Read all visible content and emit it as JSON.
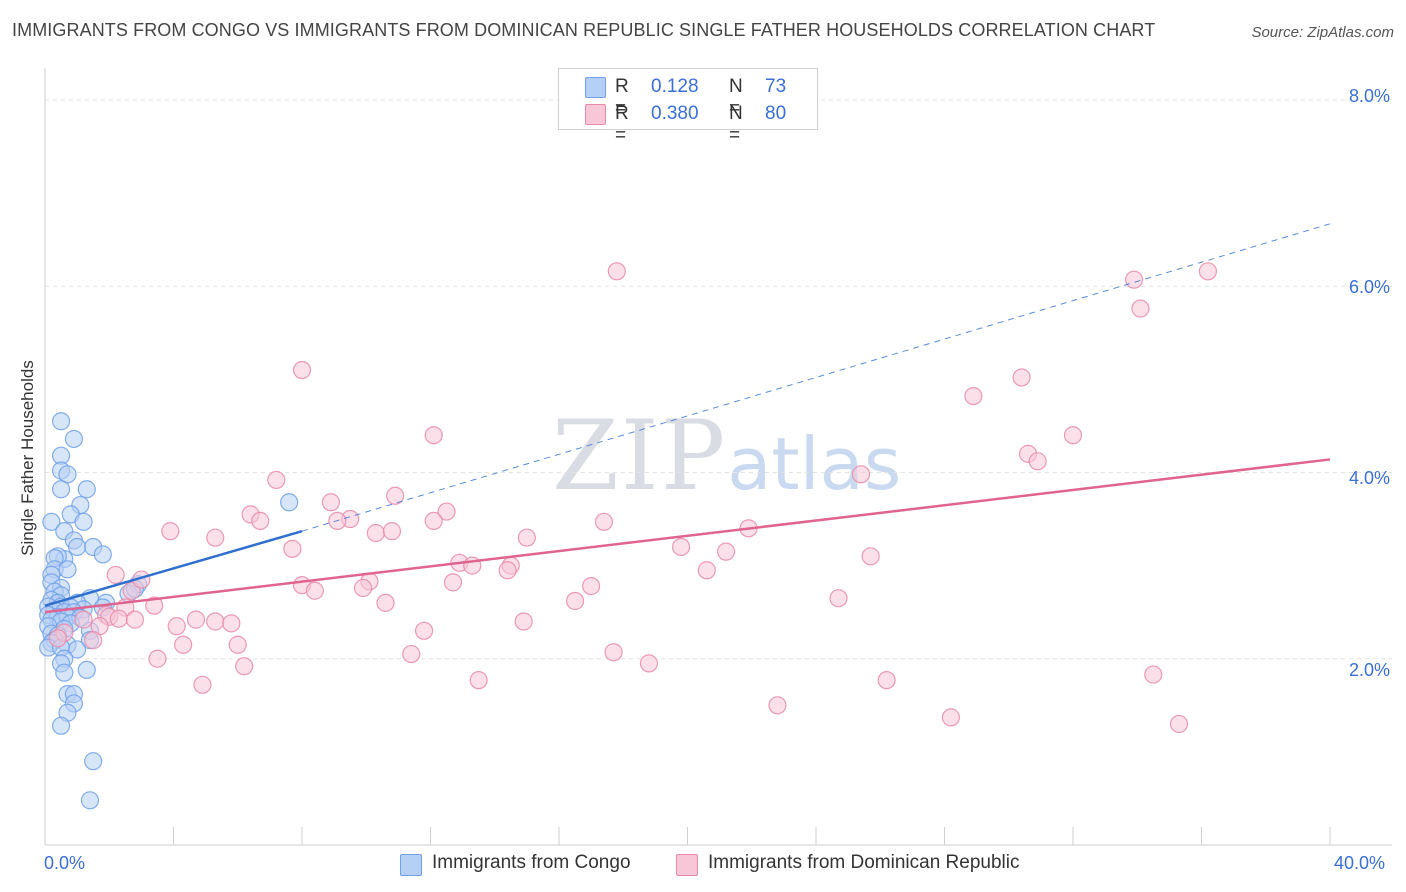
{
  "title": "IMMIGRANTS FROM CONGO VS IMMIGRANTS FROM DOMINICAN REPUBLIC SINGLE FATHER HOUSEHOLDS CORRELATION CHART",
  "source": "Source: ZipAtlas.com",
  "watermark": {
    "zip": "ZIP",
    "atlas": "atlas"
  },
  "colors": {
    "congo": "#6fa0e8",
    "congo_fill": "#b6cff4",
    "dom": "#e889a8",
    "dom_fill": "#f7c7d7",
    "congo_line": "#2f6fd0",
    "dom_line": "#e0648f",
    "tick_text": "#3a6fd8"
  },
  "legend_top": [
    {
      "r_label": "R =",
      "r_value": "0.128",
      "n_label": "N =",
      "n_value": "73"
    },
    {
      "r_label": "R =",
      "r_value": "0.380",
      "n_label": "N =",
      "n_value": "80"
    }
  ],
  "legend_bottom": [
    "Immigrants from Congo",
    "Immigrants from Dominican Republic"
  ],
  "chart_data": {
    "type": "scatter",
    "title": "IMMIGRANTS FROM CONGO VS IMMIGRANTS FROM DOMINICAN REPUBLIC SINGLE FATHER HOUSEHOLDS CORRELATION CHART",
    "xlabel": "",
    "ylabel": "Single Father Households",
    "xlim": [
      0,
      40
    ],
    "ylim": [
      0,
      8.3
    ],
    "x_tick_labels": [
      "0.0%",
      "40.0%"
    ],
    "y_ticks": [
      2,
      4,
      6,
      8
    ],
    "y_tick_labels": [
      "2.0%",
      "4.0%",
      "6.0%",
      "8.0%"
    ],
    "grid": true,
    "series": [
      {
        "name": "Immigrants from Congo",
        "r": 0.128,
        "n": 73,
        "trend": {
          "x0": 0.0,
          "y0": 2.57,
          "x1": 8.0,
          "y1": 3.37,
          "extend_to_x": 40.0,
          "extend_to_y": 6.67
        },
        "points": [
          [
            0.5,
            4.55
          ],
          [
            0.9,
            4.36
          ],
          [
            0.5,
            4.18
          ],
          [
            0.5,
            4.02
          ],
          [
            0.7,
            3.98
          ],
          [
            1.3,
            3.82
          ],
          [
            0.5,
            3.82
          ],
          [
            1.1,
            3.65
          ],
          [
            0.8,
            3.55
          ],
          [
            0.2,
            3.47
          ],
          [
            1.2,
            3.47
          ],
          [
            0.6,
            3.37
          ],
          [
            0.9,
            3.27
          ],
          [
            1.0,
            3.2
          ],
          [
            1.5,
            3.2
          ],
          [
            0.6,
            3.07
          ],
          [
            1.8,
            3.12
          ],
          [
            0.4,
            3.1
          ],
          [
            0.3,
            3.08
          ],
          [
            0.3,
            2.96
          ],
          [
            0.7,
            2.96
          ],
          [
            0.2,
            2.9
          ],
          [
            0.2,
            2.82
          ],
          [
            2.9,
            2.8
          ],
          [
            0.5,
            2.76
          ],
          [
            0.3,
            2.72
          ],
          [
            0.5,
            2.68
          ],
          [
            2.6,
            2.7
          ],
          [
            1.4,
            2.65
          ],
          [
            0.2,
            2.63
          ],
          [
            0.4,
            2.6
          ],
          [
            1.0,
            2.6
          ],
          [
            1.9,
            2.6
          ],
          [
            0.1,
            2.56
          ],
          [
            0.5,
            2.56
          ],
          [
            0.8,
            2.55
          ],
          [
            1.2,
            2.53
          ],
          [
            1.8,
            2.55
          ],
          [
            0.3,
            2.52
          ],
          [
            0.6,
            2.5
          ],
          [
            0.9,
            2.5
          ],
          [
            0.1,
            2.47
          ],
          [
            0.4,
            2.45
          ],
          [
            0.7,
            2.45
          ],
          [
            1.1,
            2.44
          ],
          [
            0.2,
            2.42
          ],
          [
            0.5,
            2.4
          ],
          [
            0.8,
            2.38
          ],
          [
            0.1,
            2.35
          ],
          [
            0.6,
            2.32
          ],
          [
            1.4,
            2.3
          ],
          [
            0.2,
            2.27
          ],
          [
            0.4,
            2.25
          ],
          [
            0.3,
            2.2
          ],
          [
            1.4,
            2.2
          ],
          [
            0.2,
            2.17
          ],
          [
            0.7,
            2.15
          ],
          [
            0.1,
            2.12
          ],
          [
            0.5,
            2.12
          ],
          [
            1.0,
            2.1
          ],
          [
            0.6,
            2.0
          ],
          [
            0.5,
            1.95
          ],
          [
            1.3,
            1.88
          ],
          [
            0.6,
            1.85
          ],
          [
            0.7,
            1.62
          ],
          [
            0.9,
            1.62
          ],
          [
            0.9,
            1.52
          ],
          [
            0.7,
            1.42
          ],
          [
            0.5,
            1.28
          ],
          [
            1.5,
            0.9
          ],
          [
            1.4,
            0.48
          ],
          [
            7.6,
            3.68
          ],
          [
            2.8,
            2.75
          ]
        ]
      },
      {
        "name": "Immigrants from Dominican Republic",
        "r": 0.38,
        "n": 80,
        "trend": {
          "x0": 0.0,
          "y0": 2.5,
          "x1": 40.0,
          "y1": 4.14
        },
        "points": [
          [
            17.8,
            6.16
          ],
          [
            36.2,
            6.16
          ],
          [
            33.9,
            6.07
          ],
          [
            34.1,
            5.76
          ],
          [
            8.0,
            5.1
          ],
          [
            28.9,
            4.82
          ],
          [
            30.4,
            5.02
          ],
          [
            12.1,
            4.4
          ],
          [
            30.6,
            4.2
          ],
          [
            30.9,
            4.12
          ],
          [
            32.0,
            4.4
          ],
          [
            25.4,
            3.98
          ],
          [
            7.2,
            3.92
          ],
          [
            10.9,
            3.75
          ],
          [
            8.9,
            3.68
          ],
          [
            12.5,
            3.58
          ],
          [
            6.4,
            3.55
          ],
          [
            6.7,
            3.48
          ],
          [
            9.5,
            3.5
          ],
          [
            9.1,
            3.48
          ],
          [
            12.1,
            3.48
          ],
          [
            17.4,
            3.47
          ],
          [
            21.9,
            3.4
          ],
          [
            3.9,
            3.37
          ],
          [
            10.3,
            3.35
          ],
          [
            10.8,
            3.37
          ],
          [
            15.0,
            3.3
          ],
          [
            5.3,
            3.3
          ],
          [
            19.8,
            3.2
          ],
          [
            7.7,
            3.18
          ],
          [
            21.2,
            3.15
          ],
          [
            25.7,
            3.1
          ],
          [
            12.9,
            3.03
          ],
          [
            13.3,
            3.0
          ],
          [
            14.5,
            3.0
          ],
          [
            14.4,
            2.95
          ],
          [
            20.6,
            2.95
          ],
          [
            2.2,
            2.9
          ],
          [
            10.1,
            2.83
          ],
          [
            12.7,
            2.82
          ],
          [
            8.0,
            2.79
          ],
          [
            17.0,
            2.78
          ],
          [
            9.9,
            2.76
          ],
          [
            8.4,
            2.73
          ],
          [
            2.7,
            2.73
          ],
          [
            24.7,
            2.65
          ],
          [
            10.6,
            2.6
          ],
          [
            16.5,
            2.62
          ],
          [
            3.4,
            2.57
          ],
          [
            2.5,
            2.55
          ],
          [
            1.9,
            2.47
          ],
          [
            2.0,
            2.45
          ],
          [
            2.3,
            2.43
          ],
          [
            2.8,
            2.42
          ],
          [
            4.7,
            2.42
          ],
          [
            5.3,
            2.4
          ],
          [
            5.8,
            2.38
          ],
          [
            14.9,
            2.4
          ],
          [
            4.1,
            2.35
          ],
          [
            1.7,
            2.35
          ],
          [
            11.8,
            2.3
          ],
          [
            6.0,
            2.15
          ],
          [
            4.3,
            2.15
          ],
          [
            1.5,
            2.2
          ],
          [
            17.7,
            2.07
          ],
          [
            11.4,
            2.05
          ],
          [
            3.5,
            2.0
          ],
          [
            18.8,
            1.95
          ],
          [
            6.2,
            1.92
          ],
          [
            34.5,
            1.83
          ],
          [
            13.5,
            1.77
          ],
          [
            26.2,
            1.77
          ],
          [
            4.9,
            1.72
          ],
          [
            22.8,
            1.5
          ],
          [
            28.2,
            1.37
          ],
          [
            35.3,
            1.3
          ],
          [
            3.0,
            2.85
          ],
          [
            1.2,
            2.42
          ],
          [
            0.6,
            2.28
          ],
          [
            0.4,
            2.22
          ]
        ]
      }
    ]
  }
}
